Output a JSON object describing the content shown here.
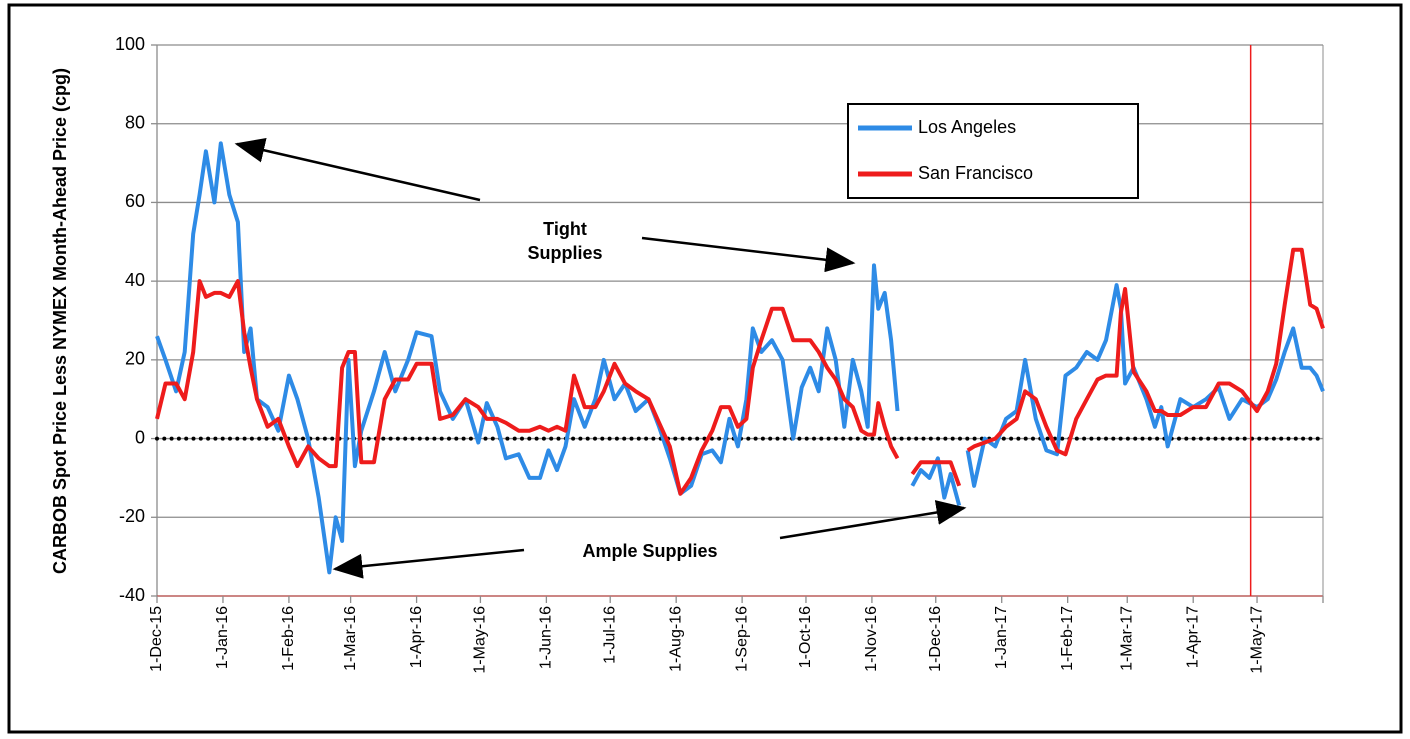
{
  "chart_data": {
    "type": "line",
    "y_label": "CARBOB Spot Price Less NYMEX Month-Ahead Price (cpg)",
    "x": [
      "2015-12-01",
      "2015-12-05",
      "2015-12-10",
      "2015-12-14",
      "2015-12-18",
      "2015-12-21",
      "2015-12-24",
      "2015-12-28",
      "2015-12-31",
      "2016-01-04",
      "2016-01-08",
      "2016-01-11",
      "2016-01-14",
      "2016-01-17",
      "2016-01-22",
      "2016-01-27",
      "2016-02-01",
      "2016-02-05",
      "2016-02-10",
      "2016-02-15",
      "2016-02-20",
      "2016-02-23",
      "2016-02-26",
      "2016-02-29",
      "2016-03-03",
      "2016-03-06",
      "2016-03-12",
      "2016-03-17",
      "2016-03-22",
      "2016-03-28",
      "2016-04-01",
      "2016-04-08",
      "2016-04-12",
      "2016-04-18",
      "2016-04-24",
      "2016-04-30",
      "2016-05-04",
      "2016-05-09",
      "2016-05-13",
      "2016-05-19",
      "2016-05-24",
      "2016-05-29",
      "2016-06-02",
      "2016-06-06",
      "2016-06-10",
      "2016-06-14",
      "2016-06-19",
      "2016-06-24",
      "2016-06-28",
      "2016-07-03",
      "2016-07-08",
      "2016-07-13",
      "2016-07-19",
      "2016-07-24",
      "2016-07-29",
      "2016-08-03",
      "2016-08-08",
      "2016-08-13",
      "2016-08-18",
      "2016-08-22",
      "2016-08-26",
      "2016-08-30",
      "2016-09-03",
      "2016-09-06",
      "2016-09-10",
      "2016-09-15",
      "2016-09-20",
      "2016-09-25",
      "2016-09-29",
      "2016-10-03",
      "2016-10-07",
      "2016-10-11",
      "2016-10-15",
      "2016-10-19",
      "2016-10-23",
      "2016-10-27",
      "2016-10-30",
      "2016-11-02",
      "2016-11-04",
      "2016-11-07",
      "2016-11-10",
      "2016-11-13",
      "2016-11-17",
      "2016-11-20",
      "2016-11-24",
      "2016-11-28",
      "2016-12-02",
      "2016-12-05",
      "2016-12-08",
      "2016-12-12",
      "2016-12-14",
      "2016-12-16",
      "2016-12-19",
      "2016-12-24",
      "2016-12-29",
      "2017-01-03",
      "2017-01-08",
      "2017-01-12",
      "2017-01-17",
      "2017-01-22",
      "2017-01-27",
      "2017-01-31",
      "2017-02-05",
      "2017-02-10",
      "2017-02-15",
      "2017-02-19",
      "2017-02-24",
      "2017-02-26",
      "2017-02-28",
      "2017-03-04",
      "2017-03-10",
      "2017-03-14",
      "2017-03-17",
      "2017-03-20",
      "2017-03-26",
      "2017-04-01",
      "2017-04-07",
      "2017-04-13",
      "2017-04-18",
      "2017-04-24",
      "2017-05-01",
      "2017-05-06",
      "2017-05-10",
      "2017-05-14",
      "2017-05-18",
      "2017-05-22",
      "2017-05-26",
      "2017-05-29",
      "2017-06-01"
    ],
    "series": [
      {
        "name": "Los Angeles",
        "color": "#2e8be6",
        "values": [
          26,
          20,
          12,
          22,
          52,
          62,
          73,
          60,
          75,
          62,
          55,
          22,
          28,
          10,
          8,
          2,
          16,
          10,
          0,
          -15,
          -34,
          -20,
          -26,
          20,
          -7,
          2,
          12,
          22,
          12,
          20,
          27,
          26,
          12,
          5,
          10,
          -1,
          9,
          3,
          -5,
          -4,
          -10,
          -10,
          -3,
          -8,
          -2,
          10,
          3,
          10,
          20,
          10,
          14,
          7,
          10,
          3,
          -5,
          -14,
          -12,
          -4,
          -3,
          -6,
          5,
          -2,
          10,
          28,
          22,
          25,
          20,
          0,
          13,
          18,
          12,
          28,
          20,
          3,
          20,
          12,
          3,
          44,
          33,
          37,
          25,
          7,
          null,
          -12,
          -8,
          -10,
          -5,
          -15,
          -9,
          -17,
          null,
          -3,
          -12,
          0,
          -2,
          5,
          7,
          20,
          5,
          -3,
          -4,
          16,
          18,
          22,
          20,
          25,
          39,
          33,
          14,
          18,
          10,
          3,
          8,
          -2,
          10,
          8,
          10,
          13,
          5,
          10,
          8,
          10,
          15,
          22,
          28,
          18,
          18,
          16,
          12
        ]
      },
      {
        "name": "San Francisco",
        "color": "#ee1c1c",
        "values": [
          5,
          14,
          14,
          10,
          22,
          40,
          36,
          37,
          37,
          36,
          40,
          27,
          18,
          10,
          3,
          5,
          -2,
          -7,
          -2,
          -5,
          -7,
          -7,
          18,
          22,
          22,
          -6,
          -6,
          10,
          15,
          15,
          19,
          19,
          5,
          6,
          10,
          8,
          5,
          5,
          4,
          2,
          2,
          3,
          2,
          3,
          2,
          16,
          8,
          8,
          12,
          19,
          14,
          12,
          10,
          4,
          -2,
          -14,
          -10,
          -3,
          2,
          8,
          8,
          3,
          5,
          18,
          25,
          33,
          33,
          25,
          25,
          25,
          22,
          18,
          15,
          10,
          8,
          2,
          1,
          1,
          9,
          3,
          -2,
          -5,
          null,
          -9,
          -6,
          -6,
          -6,
          -6,
          -6,
          -12,
          null,
          -3,
          -2,
          -1,
          0,
          3,
          5,
          12,
          10,
          3,
          -3,
          -4,
          5,
          10,
          15,
          16,
          16,
          32,
          38,
          17,
          12,
          7,
          7,
          6,
          6,
          8,
          8,
          14,
          14,
          12,
          7,
          12,
          19,
          34,
          48,
          48,
          34,
          33,
          28
        ]
      }
    ],
    "xlim": [
      "2015-12-01",
      "2017-06-01"
    ],
    "xticks": [
      {
        "value": "2015-12-01",
        "label": "1-Dec-15"
      },
      {
        "value": "2016-01-01",
        "label": "1-Jan-16"
      },
      {
        "value": "2016-02-01",
        "label": "1-Feb-16"
      },
      {
        "value": "2016-03-01",
        "label": "1-Mar-16"
      },
      {
        "value": "2016-04-01",
        "label": "1-Apr-16"
      },
      {
        "value": "2016-05-01",
        "label": "1-May-16"
      },
      {
        "value": "2016-06-01",
        "label": "1-Jun-16"
      },
      {
        "value": "2016-07-01",
        "label": "1-Jul-16"
      },
      {
        "value": "2016-08-01",
        "label": "1-Aug-16"
      },
      {
        "value": "2016-09-01",
        "label": "1-Sep-16"
      },
      {
        "value": "2016-10-01",
        "label": "1-Oct-16"
      },
      {
        "value": "2016-11-01",
        "label": "1-Nov-16"
      },
      {
        "value": "2016-12-01",
        "label": "1-Dec-16"
      },
      {
        "value": "2017-01-01",
        "label": "1-Jan-17"
      },
      {
        "value": "2017-02-01",
        "label": "1-Feb-17"
      },
      {
        "value": "2017-03-01",
        "label": "1-Mar-17"
      },
      {
        "value": "2017-04-01",
        "label": "1-Apr-17"
      },
      {
        "value": "2017-05-01",
        "label": "1-May-17"
      }
    ],
    "ylim": [
      -40,
      100
    ],
    "yticks": [
      -40,
      -20,
      0,
      20,
      40,
      60,
      80,
      100
    ],
    "grid": true,
    "legend": "upper right",
    "reference_line": {
      "value": 0,
      "style": "dotted",
      "color": "#000000"
    },
    "vline": {
      "value": "2017-04-28",
      "color": "#ee1c1c"
    },
    "annotations": [
      {
        "text": "Tight Supplies"
      },
      {
        "text": "Ample Supplies"
      }
    ]
  }
}
